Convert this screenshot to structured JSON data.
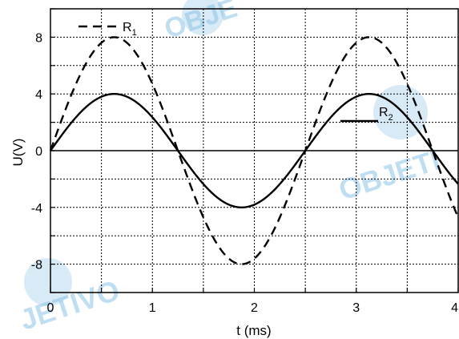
{
  "chart_data": {
    "type": "line",
    "xlabel": "t (ms)",
    "ylabel": "U(V)",
    "xlim": [
      0,
      4
    ],
    "ylim": [
      -10,
      10
    ],
    "x_ticks": [
      "0",
      "1",
      "2",
      "3",
      "4"
    ],
    "y_ticks": [
      "-8",
      "-4",
      "0",
      "4",
      "8"
    ],
    "grid": true,
    "series": [
      {
        "name_main": "R",
        "name_sub": "1",
        "style": "dashed",
        "amplitude": 8,
        "period": 2.5,
        "x": [
          0,
          0.625,
          1.25,
          1.875,
          2.5,
          3.125,
          3.75,
          4.0
        ],
        "y": [
          0,
          8,
          0,
          -8,
          0,
          8,
          0,
          -4.7
        ]
      },
      {
        "name_main": "R",
        "name_sub": "2",
        "style": "solid",
        "amplitude": 4,
        "period": 2.5,
        "x": [
          0,
          0.625,
          1.25,
          1.875,
          2.5,
          3.125,
          3.75,
          4.0
        ],
        "y": [
          0,
          4,
          0,
          -4,
          0,
          4,
          0,
          -2.35
        ]
      }
    ]
  },
  "watermark": {
    "text_top": "OBJE",
    "text_mid": "OBJETI",
    "text_bottom": "JETIVO"
  }
}
